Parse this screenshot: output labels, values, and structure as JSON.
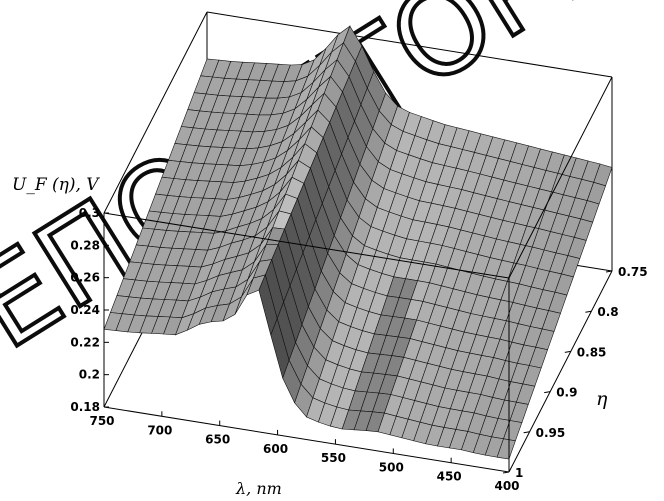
{
  "chart_data": {
    "type": "surface",
    "title": "",
    "x_axis": {
      "label": "λ,  nm",
      "ticks": [
        750,
        700,
        650,
        600,
        550,
        500,
        450,
        400
      ],
      "range": [
        750,
        400
      ]
    },
    "y_axis": {
      "label": "η",
      "ticks": [
        "0.75",
        "0.8",
        "0.85",
        "0.9",
        "0.95",
        "1"
      ],
      "range": [
        0.75,
        1
      ]
    },
    "z_axis": {
      "label": "U_F (η), V",
      "ticks": [
        "0.18",
        "0.2",
        "0.22",
        "0.24",
        "0.26",
        "0.28",
        "0.3"
      ],
      "range": [
        0.18,
        0.3
      ]
    },
    "profile": {
      "lambda": [
        750,
        725,
        700,
        685,
        670,
        655,
        640,
        628,
        618,
        610,
        600,
        590,
        575,
        560,
        545,
        530,
        515,
        500,
        485,
        470,
        455,
        440,
        425,
        410,
        400
      ],
      "u_at_eta_0_75": [
        0.271,
        0.272,
        0.274,
        0.275,
        0.276,
        0.282,
        0.296,
        0.307,
        0.297,
        0.285,
        0.272,
        0.262,
        0.258,
        0.256,
        0.254,
        0.253,
        0.252,
        0.251,
        0.25,
        0.249,
        0.248,
        0.247,
        0.246,
        0.245,
        0.244
      ],
      "u_at_eta_1": [
        0.228,
        0.229,
        0.231,
        0.232,
        0.24,
        0.244,
        0.246,
        0.262,
        0.272,
        0.253,
        0.224,
        0.205,
        0.194,
        0.191,
        0.19,
        0.191,
        0.192,
        0.191,
        0.19,
        0.189,
        0.189,
        0.189,
        0.188,
        0.188,
        0.188
      ]
    },
    "grid": false,
    "legend": "none"
  },
  "watermark": "РЕПОЗИТОРИЙ"
}
